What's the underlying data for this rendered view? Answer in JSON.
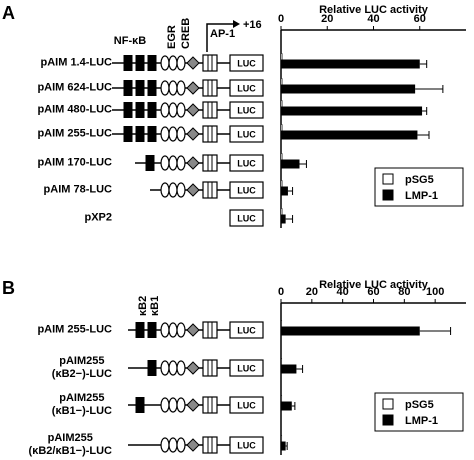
{
  "chart_data": [
    {
      "type": "bar",
      "orientation": "horizontal",
      "panel_label": "A",
      "xlabel": "Relative LUC activity",
      "annotations": [
        "NF-κB",
        "EGR",
        "CREB",
        "AP-1",
        "+16"
      ],
      "luc_label": "LUC",
      "categories": [
        "pAIM 1.4-LUC",
        "pAIM 624-LUC",
        "pAIM 480-LUC",
        "pAIM 255-LUC",
        "pAIM 170-LUC",
        "pAIM 78-LUC",
        "pXP2"
      ],
      "series": [
        {
          "name": "pSG5",
          "color": "#ffffff",
          "values": [
            0.5,
            0.5,
            0.5,
            0.5,
            0.5,
            0.5,
            0.5
          ]
        },
        {
          "name": "LMP-1",
          "color": "#000000",
          "values": [
            60,
            58,
            61,
            59,
            8,
            3,
            2
          ],
          "errors": [
            3,
            12,
            2,
            5,
            3,
            2,
            3
          ]
        }
      ],
      "xlim": [
        0,
        80
      ],
      "xticks": [
        0,
        20,
        40,
        60
      ],
      "legend": "lower right"
    },
    {
      "type": "bar",
      "orientation": "horizontal",
      "panel_label": "B",
      "xlabel": "Relative LUC activity",
      "annotations": [
        "κB2",
        "κB1"
      ],
      "luc_label": "LUC",
      "categories": [
        "pAIM 255-LUC",
        "pAIM255\n(κB2−)-LUC",
        "pAIM255\n(κB1−)-LUC",
        "pAIM255\n(κB2/κB1−)-LUC"
      ],
      "series": [
        {
          "name": "pSG5",
          "color": "#ffffff",
          "values": [
            0.5,
            0.5,
            0.5,
            0.5
          ]
        },
        {
          "name": "LMP-1",
          "color": "#000000",
          "values": [
            90,
            10,
            7,
            3
          ],
          "errors": [
            20,
            4,
            2,
            1
          ]
        }
      ],
      "xlim": [
        0,
        120
      ],
      "xticks": [
        0,
        20,
        40,
        60,
        80,
        100
      ],
      "legend": "lower right"
    }
  ]
}
